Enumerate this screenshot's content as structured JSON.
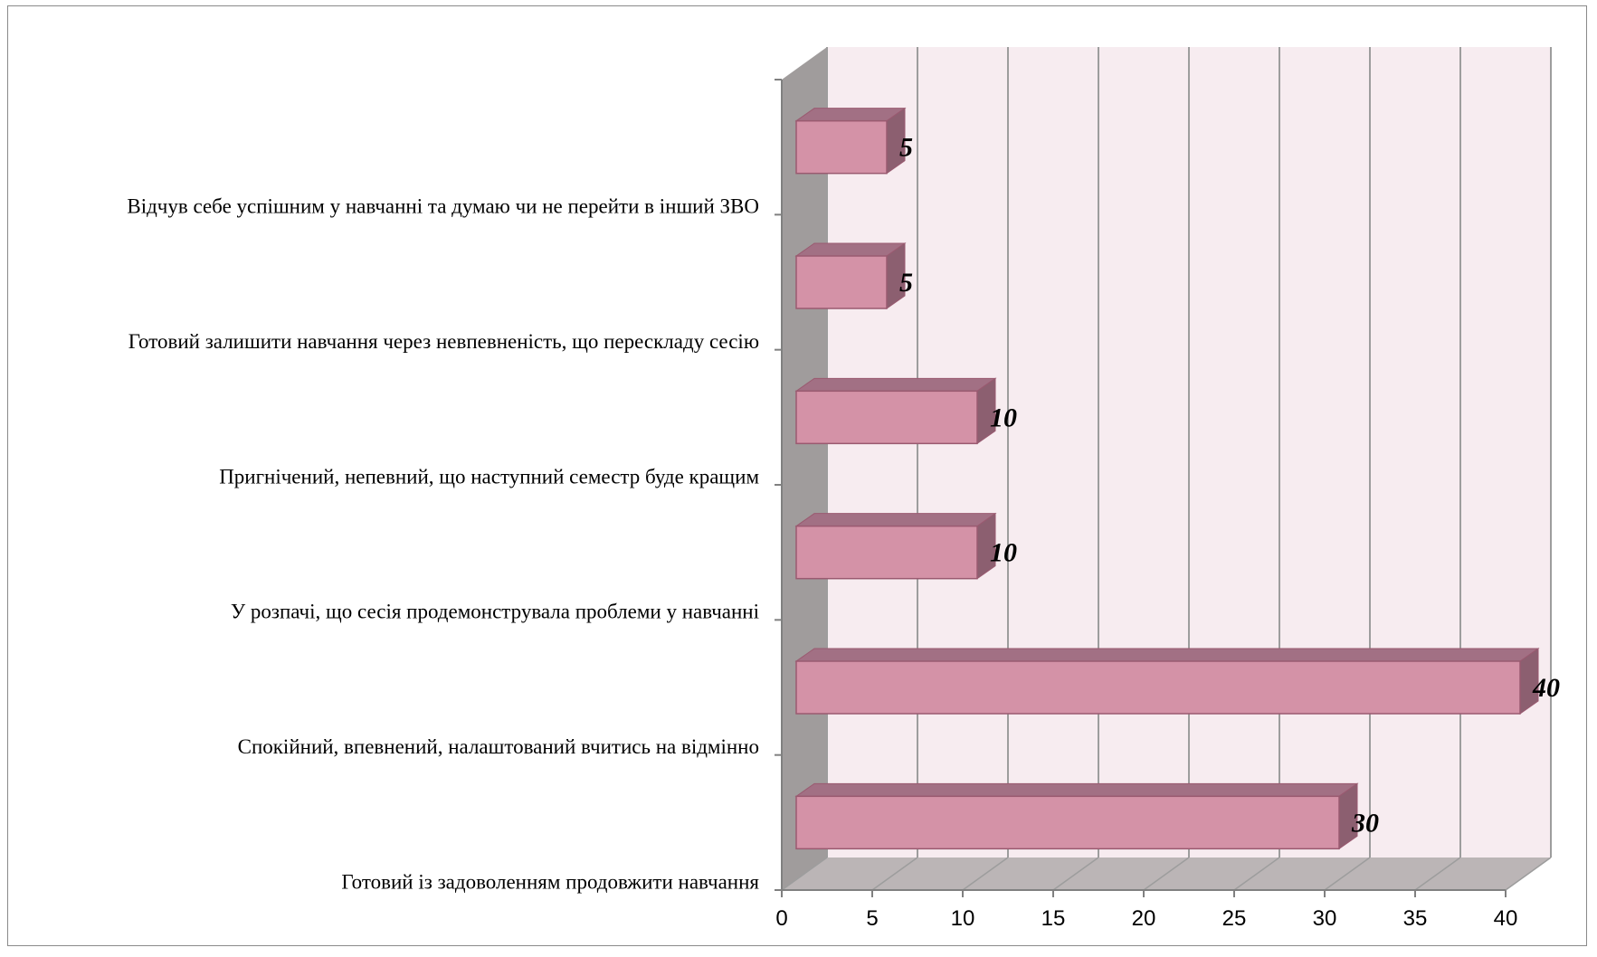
{
  "chart_data": {
    "type": "bar",
    "orientation": "horizontal",
    "style": "3d",
    "title": "",
    "xlabel": "",
    "ylabel": "",
    "categories": [
      "Готовий із задоволенням продовжити навчання",
      "Спокійний, впевнений, налаштований вчитись на відмінно",
      "У розпачі, що сесія продемонструвала проблеми у навчанні",
      "Пригнічений, непевний, що наступний семестр буде кращим",
      "Готовий залишити навчання через невпевненість, що перескладу сесію",
      "Відчув себе успішним у навчанні та думаю чи не перейти в інший ЗВО"
    ],
    "values": [
      30,
      40,
      10,
      10,
      5,
      5
    ],
    "data_labels": [
      "30",
      "40",
      "10",
      "10",
      "5",
      "5"
    ],
    "xlim": [
      0,
      40
    ],
    "xticks": [
      "0",
      "5",
      "10",
      "15",
      "20",
      "25",
      "30",
      "35",
      "40"
    ],
    "grid": true,
    "legend": "none",
    "colors": {
      "bar_front": "#d492a7",
      "bar_top": "#a27084",
      "bar_side": "#8c5f70",
      "bar_edge": "#9a5a70",
      "back_wall": "#f7ecf0",
      "side_wall": "#a09c9c",
      "floor": "#bbb5b6",
      "grid": "#9d9d9d"
    }
  }
}
